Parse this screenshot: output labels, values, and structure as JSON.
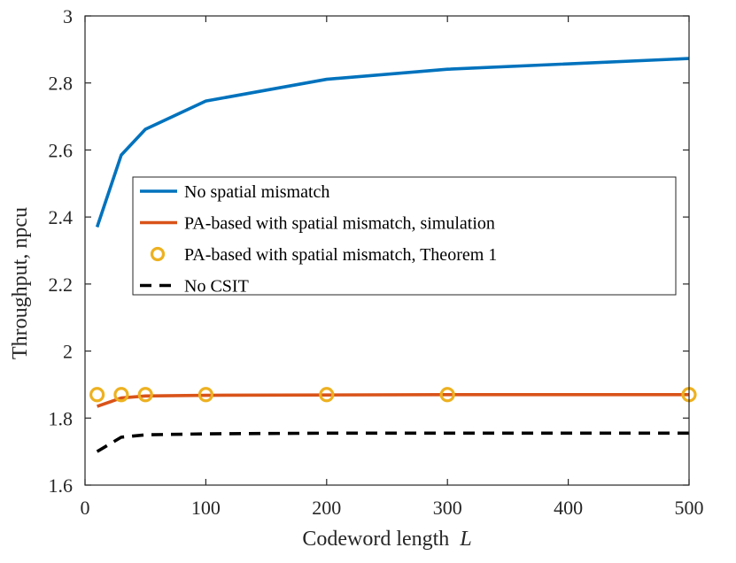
{
  "chart_data": {
    "type": "line",
    "xlabel": "Codeword length",
    "xlabel_var": "L",
    "ylabel": "Throughput, npcu",
    "xlim": [
      0,
      500
    ],
    "ylim": [
      1.6,
      3.0
    ],
    "xticks": [
      "0",
      "100",
      "200",
      "300",
      "400",
      "500"
    ],
    "xtick_values": [
      0,
      100,
      200,
      300,
      400,
      500
    ],
    "yticks": [
      "1.6",
      "1.8",
      "2",
      "2.2",
      "2.4",
      "2.6",
      "2.8",
      "3"
    ],
    "ytick_values": [
      1.6,
      1.8,
      2.0,
      2.2,
      2.4,
      2.6,
      2.8,
      3.0
    ],
    "grid": false,
    "legend_position": "center-left",
    "series": [
      {
        "name": "No spatial mismatch",
        "style": "solid-line",
        "color": "#0072BD",
        "x": [
          10,
          30,
          50,
          100,
          200,
          300,
          500
        ],
        "y": [
          2.37,
          2.585,
          2.662,
          2.746,
          2.811,
          2.841,
          2.873
        ]
      },
      {
        "name": "PA-based with spatial mismatch, simulation",
        "style": "solid-line",
        "color": "#D95319",
        "x": [
          10,
          30,
          50,
          100,
          200,
          300,
          500
        ],
        "y": [
          1.835,
          1.86,
          1.866,
          1.868,
          1.869,
          1.87,
          1.87
        ]
      },
      {
        "name": "PA-based with spatial mismatch, Theorem 1",
        "style": "circle-markers",
        "color": "#EDB120",
        "x": [
          10,
          30,
          50,
          100,
          200,
          300,
          500
        ],
        "y": [
          1.87,
          1.87,
          1.87,
          1.87,
          1.87,
          1.87,
          1.87
        ]
      },
      {
        "name": "No CSIT",
        "style": "dashed-line",
        "color": "#000000",
        "x": [
          10,
          30,
          50,
          100,
          200,
          300,
          500
        ],
        "y": [
          1.7,
          1.743,
          1.75,
          1.753,
          1.755,
          1.755,
          1.755
        ]
      }
    ]
  }
}
